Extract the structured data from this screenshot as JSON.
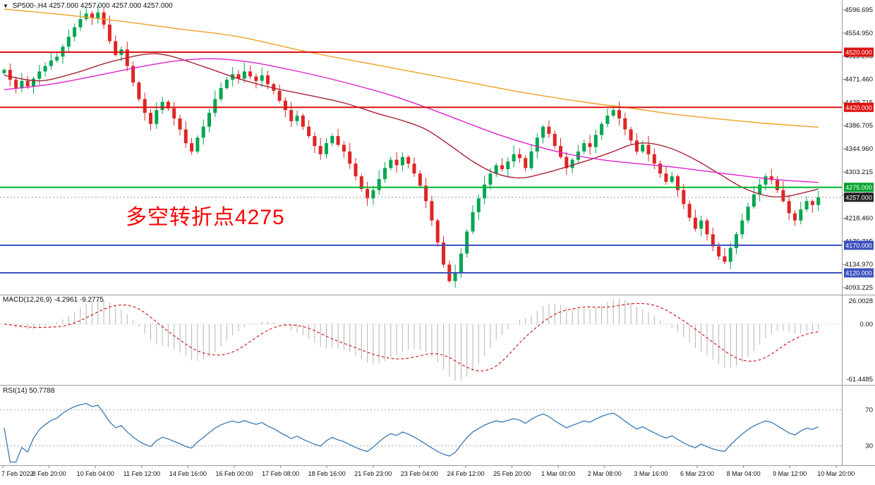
{
  "header": {
    "icon": "▼",
    "text": "SP500-,H4  4257.000 4257.000 4257.000 4257.000"
  },
  "annotation": {
    "text": "多空转折点4275",
    "color": "#ff0000"
  },
  "indicators": {
    "macd": {
      "label": "MACD(12,26,9) -4.2961 -9.2775",
      "scale_labels": [
        "26.0028",
        "0.00",
        "-61.4485"
      ]
    },
    "rsi": {
      "label": "RSI(14) 50.7788",
      "level_labels": [
        "70",
        "30"
      ]
    }
  },
  "colors": {
    "up": "#00a651",
    "down": "#e02424",
    "hist": "#b4b4b4",
    "signal": "#d02020",
    "rsi_line": "#3878b4",
    "separator": "#9a9a9a",
    "axis_text": "#111111",
    "current_price_line": "#999999"
  },
  "levels": [
    {
      "price": 4520.0,
      "label": "4520.000",
      "color": "#dd1111",
      "box": "#dd1111",
      "style": "solid",
      "width": 2
    },
    {
      "price": 4420.0,
      "label": "4420.000",
      "color": "#dd1111",
      "box": "#dd1111",
      "style": "solid",
      "width": 2
    },
    {
      "price": 4275.0,
      "label": "4275.000",
      "color": "#00b32c",
      "box": "#00a32e",
      "style": "solid",
      "width": 2
    },
    {
      "price": 4257.0,
      "label": "4257.000",
      "color": "#999999",
      "box": "#222222",
      "style": "dotted",
      "width": 1
    },
    {
      "price": 4170.0,
      "label": "4170.000",
      "color": "#3a50c0",
      "box": "#3a50c0",
      "style": "solid",
      "width": 2
    },
    {
      "price": 4120.0,
      "label": "4120.000",
      "color": "#3a50c0",
      "box": "#3a50c0",
      "style": "solid",
      "width": 2
    }
  ],
  "chart_data": {
    "type": "candlestick",
    "title": "SP500- H4",
    "symbol": "SP500-",
    "timeframe": "H4",
    "ylim": [
      4093.225,
      4596.695
    ],
    "price_ticks": [
      "4596.695",
      "4554.950",
      "4513.205",
      "4471.460",
      "4429.715",
      "4386.705",
      "4344.960",
      "4303.215",
      "4261.470",
      "4218.460",
      "4176.715",
      "4134.970",
      "4093.225"
    ],
    "x_labels": [
      "7 Feb 2022",
      "8 Feb 20:00",
      "10 Feb 04:00",
      "11 Feb 12:00",
      "14 Feb 16:00",
      "16 Feb 00:00",
      "17 Feb 08:00",
      "18 Feb 16:00",
      "21 Feb 23:00",
      "23 Feb 04:00",
      "24 Feb 12:00",
      "25 Feb 20:00",
      "1 Mar 00:00",
      "2 Mar 08:00",
      "3 Mar 16:00",
      "6 Mar 23:00",
      "8 Mar 04:00",
      "9 Mar 12:00",
      "10 Mar 20:00"
    ],
    "closes": [
      4488,
      4470,
      4455,
      4468,
      4458,
      4472,
      4485,
      4495,
      4505,
      4512,
      4530,
      4548,
      4565,
      4580,
      4590,
      4582,
      4592,
      4570,
      4540,
      4515,
      4525,
      4495,
      4465,
      4435,
      4410,
      4390,
      4415,
      4430,
      4418,
      4400,
      4380,
      4355,
      4340,
      4365,
      4385,
      4410,
      4435,
      4455,
      4470,
      4480,
      4472,
      4485,
      4476,
      4468,
      4478,
      4462,
      4450,
      4432,
      4415,
      4395,
      4405,
      4385,
      4368,
      4350,
      4335,
      4355,
      4368,
      4352,
      4340,
      4318,
      4295,
      4272,
      4255,
      4270,
      4290,
      4310,
      4325,
      4315,
      4330,
      4318,
      4300,
      4278,
      4250,
      4215,
      4175,
      4135,
      4105,
      4120,
      4155,
      4195,
      4230,
      4255,
      4280,
      4300,
      4315,
      4308,
      4322,
      4335,
      4328,
      4310,
      4340,
      4365,
      4385,
      4372,
      4350,
      4330,
      4310,
      4325,
      4340,
      4355,
      4348,
      4370,
      4390,
      4405,
      4415,
      4400,
      4380,
      4360,
      4340,
      4352,
      4335,
      4318,
      4300,
      4285,
      4295,
      4270,
      4245,
      4220,
      4200,
      4215,
      4190,
      4168,
      4150,
      4140,
      4165,
      4190,
      4215,
      4240,
      4262,
      4280,
      4295,
      4288,
      4270,
      4250,
      4228,
      4215,
      4235,
      4250,
      4243,
      4257
    ],
    "last_price": "4257.000",
    "overlays": [
      {
        "name": "ma-medium-darkred",
        "color": "#aa2233",
        "points": [
          [
            0,
            4478
          ],
          [
            6,
            4468
          ],
          [
            12,
            4482
          ],
          [
            18,
            4502
          ],
          [
            24,
            4516
          ],
          [
            28,
            4514
          ],
          [
            34,
            4494
          ],
          [
            40,
            4472
          ],
          [
            46,
            4455
          ],
          [
            52,
            4442
          ],
          [
            58,
            4428
          ],
          [
            64,
            4408
          ],
          [
            68,
            4396
          ],
          [
            72,
            4380
          ],
          [
            76,
            4352
          ],
          [
            80,
            4322
          ],
          [
            84,
            4300
          ],
          [
            88,
            4292
          ],
          [
            92,
            4300
          ],
          [
            96,
            4312
          ],
          [
            100,
            4325
          ],
          [
            104,
            4340
          ],
          [
            107,
            4352
          ],
          [
            110,
            4355
          ],
          [
            114,
            4345
          ],
          [
            118,
            4325
          ],
          [
            122,
            4300
          ],
          [
            126,
            4275
          ],
          [
            130,
            4260
          ],
          [
            133,
            4258
          ],
          [
            136,
            4264
          ],
          [
            139,
            4272
          ]
        ]
      },
      {
        "name": "ma-slow-magenta",
        "color": "#dd22cc",
        "points": [
          [
            0,
            4452
          ],
          [
            8,
            4462
          ],
          [
            16,
            4478
          ],
          [
            24,
            4495
          ],
          [
            30,
            4505
          ],
          [
            36,
            4508
          ],
          [
            42,
            4502
          ],
          [
            48,
            4490
          ],
          [
            54,
            4476
          ],
          [
            60,
            4460
          ],
          [
            66,
            4442
          ],
          [
            72,
            4420
          ],
          [
            78,
            4396
          ],
          [
            84,
            4372
          ],
          [
            90,
            4352
          ],
          [
            96,
            4336
          ],
          [
            102,
            4325
          ],
          [
            108,
            4318
          ],
          [
            114,
            4312
          ],
          [
            120,
            4304
          ],
          [
            126,
            4296
          ],
          [
            132,
            4289
          ],
          [
            139,
            4284
          ]
        ]
      },
      {
        "name": "ma-long-orange",
        "color": "#efa020",
        "points": [
          [
            0,
            4598
          ],
          [
            10,
            4588
          ],
          [
            20,
            4576
          ],
          [
            30,
            4562
          ],
          [
            40,
            4548
          ],
          [
            52,
            4520
          ],
          [
            64,
            4496
          ],
          [
            76,
            4472
          ],
          [
            88,
            4448
          ],
          [
            100,
            4428
          ],
          [
            106,
            4420
          ],
          [
            114,
            4408
          ],
          [
            122,
            4399
          ],
          [
            130,
            4391
          ],
          [
            139,
            4384
          ]
        ]
      }
    ],
    "macd": {
      "fast": 12,
      "slow": 26,
      "signal": 9,
      "last_main": -4.2961,
      "last_signal": -9.2775,
      "scale_max": 26.0028,
      "scale_min": -61.4485
    },
    "rsi": {
      "period": 14,
      "last_value": 50.7788,
      "levels": [
        70,
        30
      ]
    }
  }
}
